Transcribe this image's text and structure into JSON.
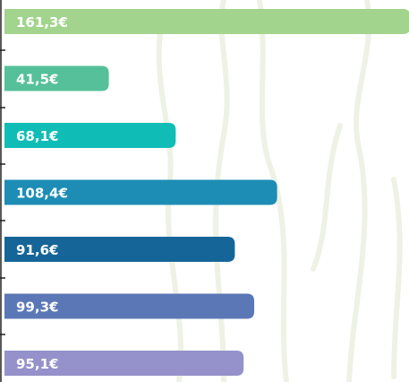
{
  "chart_data": {
    "type": "bar",
    "orientation": "horizontal",
    "values": [
      161.3,
      41.5,
      68.1,
      108.4,
      91.6,
      99.3,
      95.1
    ],
    "value_labels": [
      "161,3€",
      "41,5€",
      "68,1€",
      "108,4€",
      "91,6€",
      "99,3€",
      "95,1€"
    ],
    "colors": [
      "#a3d48e",
      "#55c09a",
      "#10bdb6",
      "#1d8db5",
      "#166598",
      "#5b77b6",
      "#9591cb"
    ]
  }
}
